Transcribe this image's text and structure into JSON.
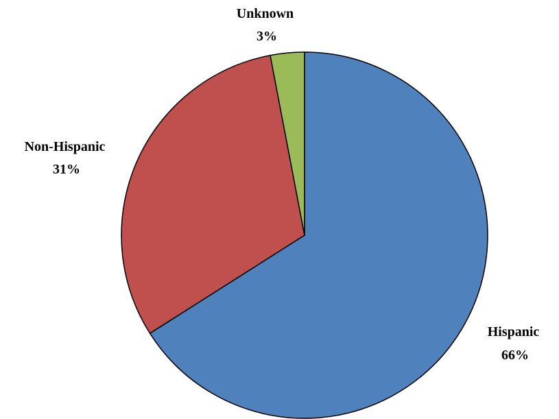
{
  "chart_data": {
    "type": "pie",
    "title": "",
    "slices": [
      {
        "label": "Hispanic",
        "value": 66,
        "value_label": "66%",
        "color": "#4F81BD"
      },
      {
        "label": "Non-Hispanic",
        "value": 31,
        "value_label": "31%",
        "color": "#C0504D"
      },
      {
        "label": "Unknown",
        "value": 3,
        "value_label": "3%",
        "color": "#9BBB59"
      }
    ],
    "start_angle": "12 o'clock",
    "direction": "clockwise",
    "legend": "none"
  }
}
